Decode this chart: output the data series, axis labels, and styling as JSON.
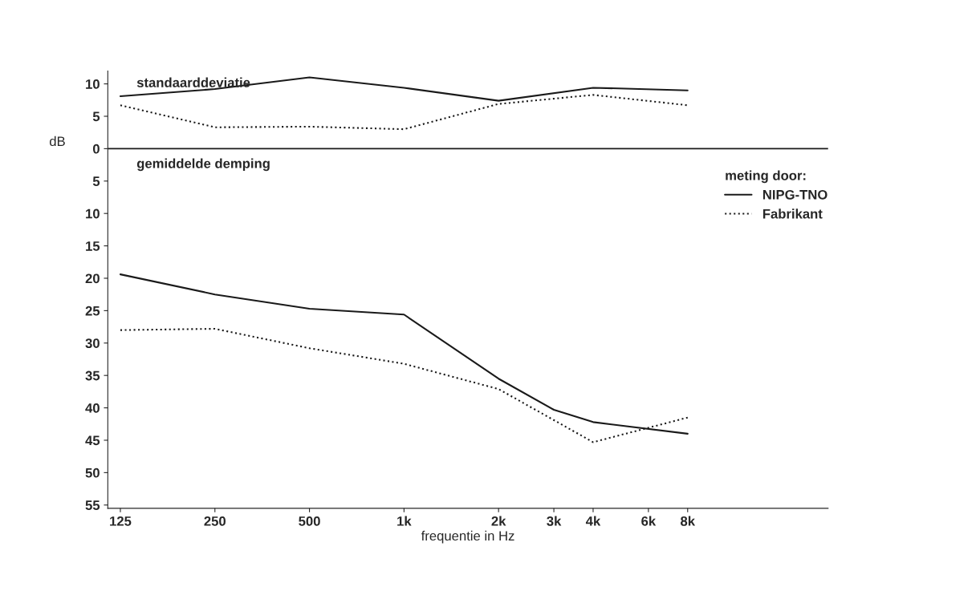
{
  "chart_data": {
    "type": "line",
    "xlabel": "frequentie in Hz",
    "ylabel": "dB",
    "legend_title": "meting door:",
    "log": "x",
    "xlim": [
      114,
      22400
    ],
    "xticks": [
      {
        "value": 125,
        "label": "125"
      },
      {
        "value": 250,
        "label": "250"
      },
      {
        "value": 500,
        "label": "500"
      },
      {
        "value": 1000,
        "label": "1k"
      },
      {
        "value": 2000,
        "label": "2k"
      },
      {
        "value": 3000,
        "label": "3k"
      },
      {
        "value": 4000,
        "label": "4k"
      },
      {
        "value": 6000,
        "label": "6k"
      },
      {
        "value": 8000,
        "label": "8k"
      }
    ],
    "ylim": [
      -55.5,
      12
    ],
    "yticks": [
      10,
      5,
      0,
      {
        "value": -5,
        "label": "5"
      },
      {
        "value": -10,
        "label": "10"
      },
      {
        "value": -15,
        "label": "15"
      },
      {
        "value": -20,
        "label": "20"
      },
      {
        "value": -25,
        "label": "25"
      },
      {
        "value": -30,
        "label": "30"
      },
      {
        "value": -35,
        "label": "35"
      },
      {
        "value": -40,
        "label": "40"
      },
      {
        "value": -45,
        "label": "45"
      },
      {
        "value": -50,
        "label": "50"
      },
      {
        "value": -55,
        "label": "55"
      }
    ],
    "ref_lines": [
      {
        "axis": "y",
        "value": 0,
        "color": "#1a1a1a",
        "line_style": "solid"
      }
    ],
    "annotations": [
      "standaarddeviatie",
      "gemiddelde demping"
    ],
    "grid": false,
    "legend": "top right",
    "marker": "none",
    "series": [
      {
        "color": "#1a1a1a",
        "line_style": "solid",
        "x": [
          125,
          250,
          500,
          1000,
          2000,
          4000,
          8000
        ],
        "values": [
          8.1,
          9.2,
          11.0,
          9.4,
          7.4,
          9.4,
          9.0
        ]
      },
      {
        "color": "#1a1a1a",
        "line_style": "dotted",
        "x": [
          125,
          250,
          500,
          1000,
          2000,
          4000,
          8000
        ],
        "values": [
          6.7,
          3.3,
          3.4,
          3.0,
          6.9,
          8.3,
          6.7
        ]
      },
      {
        "name": "NIPG-TNO",
        "color": "#1a1a1a",
        "line_style": "solid",
        "x": [
          125,
          250,
          500,
          1000,
          2000,
          3000,
          4000,
          8000
        ],
        "values": [
          -19.4,
          -22.5,
          -24.7,
          -25.6,
          -35.5,
          -40.3,
          -42.2,
          -44.0
        ]
      },
      {
        "name": "Fabrikant",
        "color": "#1a1a1a",
        "line_style": "dotted",
        "x": [
          125,
          250,
          500,
          1000,
          2000,
          4000,
          8000
        ],
        "values": [
          -28.0,
          -27.8,
          -30.8,
          -33.2,
          -37.1,
          -45.3,
          -41.5
        ]
      }
    ]
  }
}
